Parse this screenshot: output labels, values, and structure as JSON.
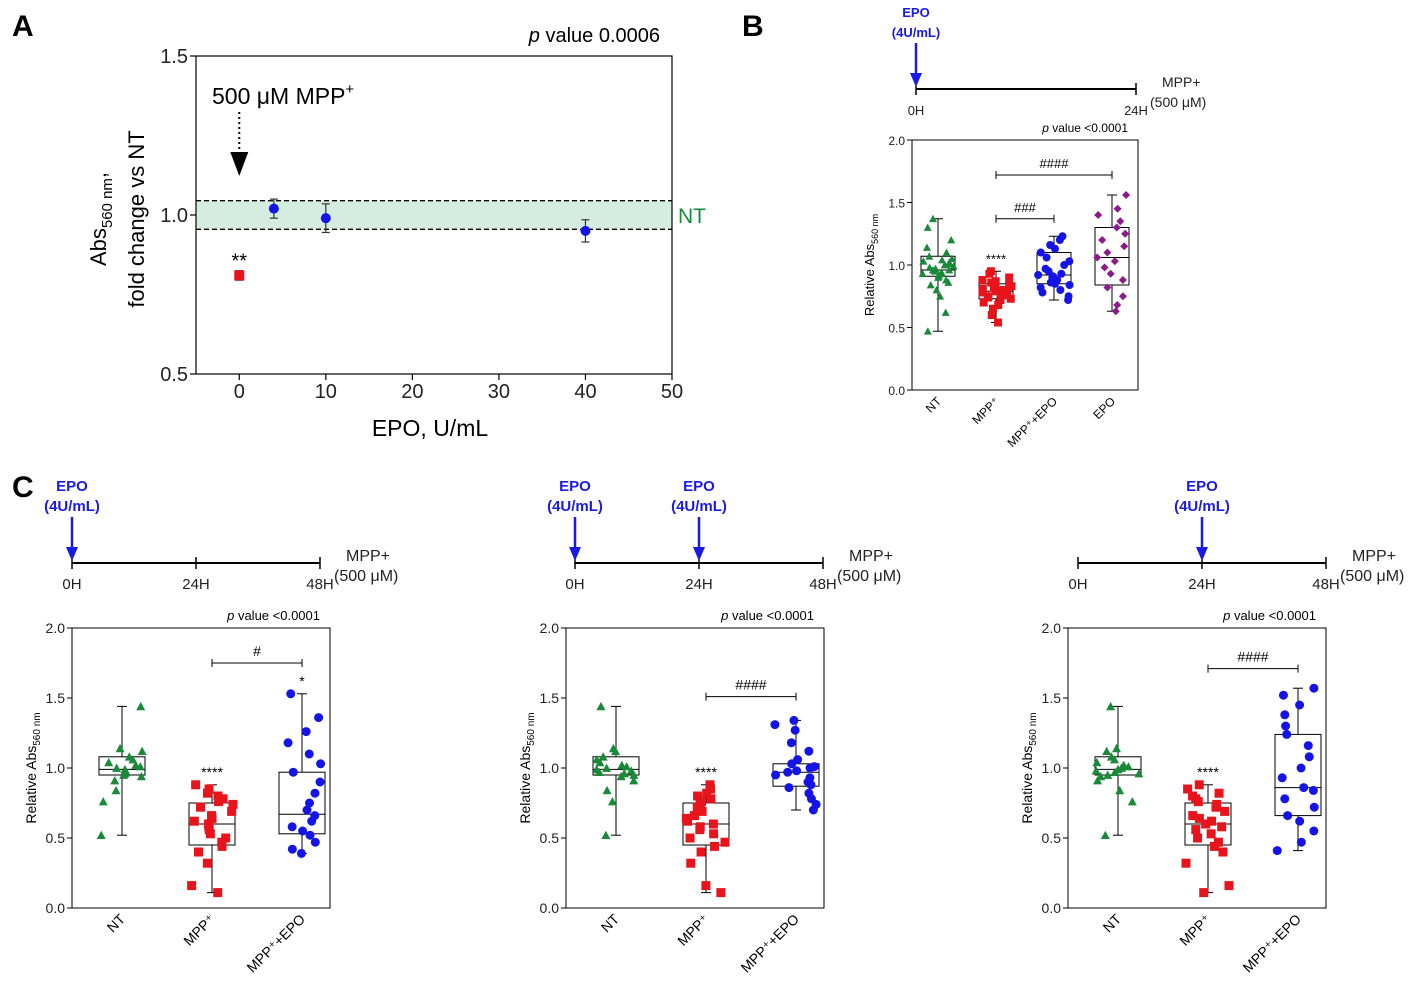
{
  "panel_labels": {
    "a": "A",
    "b": "B",
    "c": "C"
  },
  "colors": {
    "nt": "#1a8a3a",
    "mpp": "#e8141b",
    "mpp_epo": "#1414e6",
    "epo": "#8b1a8b",
    "epo_text": "#1a1ae6",
    "band_fill": "#d4ece1",
    "nt_label": "#1a8a3a"
  },
  "chart_data": [
    {
      "id": "A",
      "type": "scatter",
      "title": "",
      "pvalue_label": "p",
      "pvalue_text": " value  0.0006",
      "xlabel": "EPO, U/mL",
      "ylabel_line1": "Abs",
      "ylabel_sub": "560 nm",
      "ylabel_tail": ",",
      "ylabel_line2": "fold change vs NT",
      "xlim": [
        -5,
        50
      ],
      "ylim": [
        0.5,
        1.5
      ],
      "xticks": [
        "0",
        "10",
        "20",
        "30",
        "40",
        "50"
      ],
      "yticks": [
        "0.5",
        "1.0",
        "1.5"
      ],
      "nt_band": [
        0.955,
        1.045
      ],
      "nt_label": "NT",
      "annotation": "500 μM MPP",
      "annotation_sup": "+",
      "annotation_x": 0,
      "points": [
        {
          "x": 0,
          "y": 0.81,
          "err": 0.015,
          "group": "mpp",
          "marker": "square",
          "star": "**"
        },
        {
          "x": 4,
          "y": 1.02,
          "err": 0.03,
          "group": "mpp_epo",
          "marker": "circle",
          "star": ""
        },
        {
          "x": 10,
          "y": 0.99,
          "err": 0.045,
          "group": "mpp_epo",
          "marker": "circle",
          "star": ""
        },
        {
          "x": 40,
          "y": 0.95,
          "err": 0.035,
          "group": "mpp_epo",
          "marker": "circle",
          "star": ""
        }
      ]
    },
    {
      "id": "B",
      "type": "box",
      "timeline": {
        "epo_lines": [
          "EPO",
          "(4U/mL)"
        ],
        "arrows_at": [
          "0H"
        ],
        "ticks": [
          "0H",
          "24H"
        ],
        "mpp_lines": [
          "MPP+",
          "(500 μM)"
        ]
      },
      "pvalue_label": "p",
      "pvalue_text": " value  <0.0001",
      "ylabel": "Relative Abs",
      "ylabel_sub": "560 nm",
      "ylim": [
        0,
        2
      ],
      "yticks": [
        "0.0",
        "0.5",
        "1.0",
        "1.5",
        "2.0"
      ],
      "categories": [
        "NT",
        "MPP⁺",
        "MPP⁺+EPO",
        "EPO"
      ],
      "groups": [
        {
          "name": "NT",
          "key": "nt",
          "marker": "triangle",
          "min": 0.47,
          "q1": 0.91,
          "median": 0.96,
          "q3": 1.07,
          "max": 1.37,
          "star": "",
          "values": [
            0.47,
            0.62,
            0.75,
            0.8,
            0.84,
            0.86,
            0.88,
            0.9,
            0.91,
            0.92,
            0.93,
            0.93,
            0.94,
            0.95,
            0.96,
            0.96,
            0.97,
            0.98,
            0.99,
            1.0,
            1.01,
            1.02,
            1.03,
            1.04,
            1.05,
            1.07,
            1.1,
            1.14,
            1.2,
            1.3,
            1.37
          ]
        },
        {
          "name": "MPP⁺",
          "key": "mpp",
          "marker": "square",
          "min": 0.54,
          "q1": 0.73,
          "median": 0.79,
          "q3": 0.85,
          "max": 0.95,
          "star": "****",
          "values": [
            0.54,
            0.6,
            0.65,
            0.68,
            0.7,
            0.72,
            0.73,
            0.74,
            0.75,
            0.76,
            0.77,
            0.78,
            0.78,
            0.79,
            0.8,
            0.8,
            0.81,
            0.82,
            0.83,
            0.84,
            0.85,
            0.86,
            0.87,
            0.88,
            0.9,
            0.93,
            0.95
          ]
        },
        {
          "name": "MPP⁺+EPO",
          "key": "mpp_epo",
          "marker": "circle",
          "min": 0.72,
          "q1": 0.85,
          "median": 0.92,
          "q3": 1.1,
          "max": 1.23,
          "star": "",
          "values": [
            0.72,
            0.75,
            0.78,
            0.8,
            0.82,
            0.84,
            0.85,
            0.86,
            0.88,
            0.9,
            0.91,
            0.92,
            0.93,
            0.95,
            0.97,
            1.0,
            1.03,
            1.06,
            1.1,
            1.13,
            1.16,
            1.2,
            1.23
          ]
        },
        {
          "name": "EPO",
          "key": "epo",
          "marker": "diamond",
          "min": 0.63,
          "q1": 0.84,
          "median": 1.06,
          "q3": 1.3,
          "max": 1.56,
          "star": "",
          "values": [
            0.63,
            0.68,
            0.75,
            0.82,
            0.88,
            0.93,
            0.98,
            1.03,
            1.06,
            1.1,
            1.15,
            1.2,
            1.25,
            1.3,
            1.35,
            1.4,
            1.45,
            1.56
          ]
        }
      ],
      "comparisons": [
        {
          "from": 1,
          "to": 2,
          "label": "###",
          "y": 1.37
        },
        {
          "from": 1,
          "to": 3,
          "label": "####",
          "y": 1.72
        }
      ]
    },
    {
      "id": "C1",
      "type": "box",
      "timeline": {
        "epo_lines": [
          "EPO",
          "(4U/mL)"
        ],
        "arrows_at": [
          "0H"
        ],
        "ticks": [
          "0H",
          "24H",
          "48H"
        ],
        "mpp_lines": [
          "MPP+",
          "(500 μM)"
        ]
      },
      "pvalue_label": "p",
      "pvalue_text": " value  <0.0001",
      "ylabel": "Relative Abs",
      "ylabel_sub": "560 nm",
      "ylim": [
        0,
        2
      ],
      "yticks": [
        "0.0",
        "0.5",
        "1.0",
        "1.5",
        "2.0"
      ],
      "categories": [
        "NT",
        "MPP⁺",
        "MPP⁺+EPO"
      ],
      "groups": [
        {
          "name": "NT",
          "key": "nt",
          "marker": "triangle",
          "min": 0.52,
          "q1": 0.95,
          "median": 0.99,
          "q3": 1.08,
          "max": 1.44,
          "star": "",
          "values": [
            0.52,
            0.76,
            0.84,
            0.91,
            0.94,
            0.95,
            0.96,
            0.97,
            0.98,
            0.99,
            1.0,
            1.01,
            1.02,
            1.04,
            1.06,
            1.08,
            1.12,
            1.14,
            1.44
          ]
        },
        {
          "name": "MPP⁺",
          "key": "mpp",
          "marker": "square",
          "min": 0.11,
          "q1": 0.45,
          "median": 0.6,
          "q3": 0.75,
          "max": 0.88,
          "star": "****",
          "values": [
            0.11,
            0.16,
            0.32,
            0.4,
            0.44,
            0.47,
            0.5,
            0.53,
            0.56,
            0.58,
            0.6,
            0.62,
            0.64,
            0.66,
            0.69,
            0.72,
            0.74,
            0.76,
            0.78,
            0.8,
            0.82,
            0.85,
            0.88
          ]
        },
        {
          "name": "MPP⁺+EPO",
          "key": "mpp_epo",
          "marker": "circle",
          "min": 0.39,
          "q1": 0.53,
          "median": 0.67,
          "q3": 0.97,
          "max": 1.53,
          "star": "*",
          "values": [
            0.39,
            0.42,
            0.47,
            0.52,
            0.55,
            0.58,
            0.62,
            0.66,
            0.7,
            0.75,
            0.82,
            0.9,
            0.97,
            1.03,
            1.1,
            1.18,
            1.26,
            1.36,
            1.53
          ]
        }
      ],
      "comparisons": [
        {
          "from": 1,
          "to": 2,
          "label": "#",
          "y": 1.75
        }
      ]
    },
    {
      "id": "C2",
      "type": "box",
      "timeline": {
        "epo_lines": [
          "EPO",
          "(4U/mL)"
        ],
        "arrows_at": [
          "0H",
          "24H"
        ],
        "ticks": [
          "0H",
          "24H",
          "48H"
        ],
        "mpp_lines": [
          "MPP+",
          "(500 μM)"
        ]
      },
      "pvalue_label": "p",
      "pvalue_text": " value   <0.0001",
      "ylabel": "Relative Abs",
      "ylabel_sub": "560 nm",
      "ylim": [
        0,
        2
      ],
      "yticks": [
        "0.0",
        "0.5",
        "1.0",
        "1.5",
        "2.0"
      ],
      "categories": [
        "NT",
        "MPP⁺",
        "MPP⁺+EPO"
      ],
      "groups": [
        {
          "name": "NT",
          "key": "nt",
          "marker": "triangle",
          "min": 0.52,
          "q1": 0.95,
          "median": 0.99,
          "q3": 1.08,
          "max": 1.44,
          "star": "",
          "values": [
            0.52,
            0.76,
            0.84,
            0.91,
            0.94,
            0.95,
            0.96,
            0.97,
            0.98,
            0.99,
            1.0,
            1.01,
            1.02,
            1.04,
            1.06,
            1.08,
            1.12,
            1.14,
            1.44
          ]
        },
        {
          "name": "MPP⁺",
          "key": "mpp",
          "marker": "square",
          "min": 0.11,
          "q1": 0.45,
          "median": 0.6,
          "q3": 0.75,
          "max": 0.88,
          "star": "****",
          "values": [
            0.11,
            0.16,
            0.32,
            0.4,
            0.44,
            0.47,
            0.5,
            0.53,
            0.56,
            0.58,
            0.6,
            0.62,
            0.64,
            0.66,
            0.69,
            0.72,
            0.74,
            0.76,
            0.78,
            0.8,
            0.82,
            0.85,
            0.88
          ]
        },
        {
          "name": "MPP⁺+EPO",
          "key": "mpp_epo",
          "marker": "circle",
          "min": 0.7,
          "q1": 0.87,
          "median": 0.97,
          "q3": 1.03,
          "max": 1.34,
          "star": "",
          "values": [
            0.7,
            0.74,
            0.78,
            0.82,
            0.86,
            0.88,
            0.9,
            0.93,
            0.95,
            0.97,
            0.98,
            1.0,
            1.01,
            1.03,
            1.06,
            1.12,
            1.18,
            1.27,
            1.31,
            1.34
          ]
        }
      ],
      "comparisons": [
        {
          "from": 1,
          "to": 2,
          "label": "####",
          "y": 1.51
        }
      ]
    },
    {
      "id": "C3",
      "type": "box",
      "timeline": {
        "epo_lines": [
          "EPO",
          "(4U/mL)"
        ],
        "arrows_at": [
          "24H"
        ],
        "ticks": [
          "0H",
          "24H",
          "48H"
        ],
        "mpp_lines": [
          "MPP+",
          "(500 μM)"
        ]
      },
      "pvalue_label": "p",
      "pvalue_text": " value  <0.0001",
      "ylabel": "Relative Abs",
      "ylabel_sub": "560 nm",
      "ylim": [
        0,
        2
      ],
      "yticks": [
        "0.0",
        "0.5",
        "1.0",
        "1.5",
        "2.0"
      ],
      "categories": [
        "NT",
        "MPP⁺",
        "MPP⁺+EPO"
      ],
      "groups": [
        {
          "name": "NT",
          "key": "nt",
          "marker": "triangle",
          "min": 0.52,
          "q1": 0.95,
          "median": 0.99,
          "q3": 1.08,
          "max": 1.44,
          "star": "",
          "values": [
            0.52,
            0.76,
            0.84,
            0.91,
            0.94,
            0.95,
            0.96,
            0.97,
            0.98,
            0.99,
            1.0,
            1.01,
            1.02,
            1.04,
            1.06,
            1.08,
            1.12,
            1.14,
            1.44
          ]
        },
        {
          "name": "MPP⁺",
          "key": "mpp",
          "marker": "square",
          "min": 0.11,
          "q1": 0.45,
          "median": 0.6,
          "q3": 0.75,
          "max": 0.88,
          "star": "****",
          "values": [
            0.11,
            0.16,
            0.32,
            0.4,
            0.44,
            0.47,
            0.5,
            0.53,
            0.56,
            0.58,
            0.6,
            0.62,
            0.64,
            0.66,
            0.69,
            0.72,
            0.74,
            0.76,
            0.78,
            0.8,
            0.82,
            0.85,
            0.88
          ]
        },
        {
          "name": "MPP⁺+EPO",
          "key": "mpp_epo",
          "marker": "circle",
          "min": 0.41,
          "q1": 0.66,
          "median": 0.86,
          "q3": 1.24,
          "max": 1.57,
          "star": "",
          "values": [
            0.41,
            0.47,
            0.55,
            0.62,
            0.66,
            0.72,
            0.78,
            0.84,
            0.86,
            0.93,
            1.0,
            1.08,
            1.16,
            1.24,
            1.3,
            1.38,
            1.45,
            1.52,
            1.57
          ]
        }
      ],
      "comparisons": [
        {
          "from": 1,
          "to": 2,
          "label": "####",
          "y": 1.71
        }
      ]
    }
  ]
}
